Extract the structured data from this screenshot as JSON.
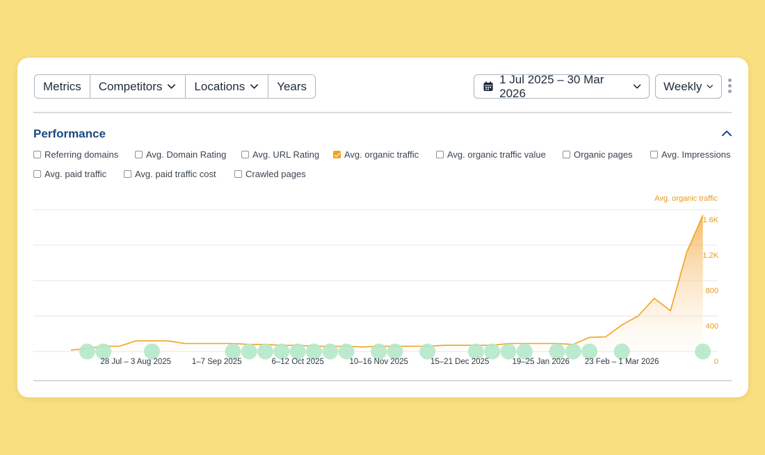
{
  "toolbar": {
    "tabs": [
      {
        "label": "Metrics"
      },
      {
        "label": "Competitors"
      },
      {
        "label": "Locations"
      },
      {
        "label": "Years"
      }
    ],
    "date_range": "1 Jul 2025 – 30 Mar 2026",
    "interval": "Weekly"
  },
  "section": {
    "title": "Performance"
  },
  "metrics": [
    {
      "label": "Referring domains",
      "checked": false
    },
    {
      "label": "Avg. Domain Rating",
      "checked": false
    },
    {
      "label": "Avg. URL Rating",
      "checked": false
    },
    {
      "label": "Avg. organic traffic",
      "checked": true
    },
    {
      "label": "Avg. organic traffic value",
      "checked": false
    },
    {
      "label": "Organic pages",
      "checked": false
    },
    {
      "label": "Avg. Impressions",
      "checked": false
    },
    {
      "label": "Avg. paid traffic",
      "checked": false
    },
    {
      "label": "Avg. paid traffic cost",
      "checked": false
    },
    {
      "label": "Crawled pages",
      "checked": false
    }
  ],
  "colors": {
    "accent": "#f0a21e",
    "annotation_bubble": "#b5e8c9",
    "title": "#1a4a80",
    "background": "#f9df7f"
  },
  "chart_data": {
    "type": "area",
    "series_axis_label": "Avg. organic traffic",
    "y_ticks": [
      "0",
      "400",
      "800",
      "1.2K",
      "1.6K"
    ],
    "ylim": [
      0,
      1600
    ],
    "x_tick_labels": [
      "28 Jul – 3 Aug 2025",
      "1–7 Sep 2025",
      "6–12 Oct 2025",
      "10–16 Nov 2025",
      "15–21 Dec 2025",
      "19–25 Jan 2026",
      "23 Feb – 1 Mar 2026"
    ],
    "x_tick_week_index": [
      4,
      9,
      14,
      19,
      24,
      29,
      34
    ],
    "weeks": 40,
    "series": [
      {
        "name": "Avg. organic traffic",
        "values": [
          15,
          35,
          60,
          60,
          120,
          120,
          120,
          90,
          90,
          90,
          90,
          80,
          80,
          70,
          70,
          60,
          60,
          60,
          50,
          60,
          60,
          60,
          60,
          70,
          70,
          70,
          70,
          90,
          90,
          90,
          90,
          80,
          160,
          165,
          300,
          400,
          600,
          460,
          1120,
          1540
        ]
      }
    ],
    "annotation_bubbles_week_index": [
      1,
      2,
      5,
      10,
      11,
      12,
      13,
      14,
      15,
      16,
      17,
      19,
      20,
      22,
      25,
      26,
      27,
      28,
      30,
      31,
      32,
      34,
      39
    ],
    "grid": true,
    "legend": "none"
  }
}
